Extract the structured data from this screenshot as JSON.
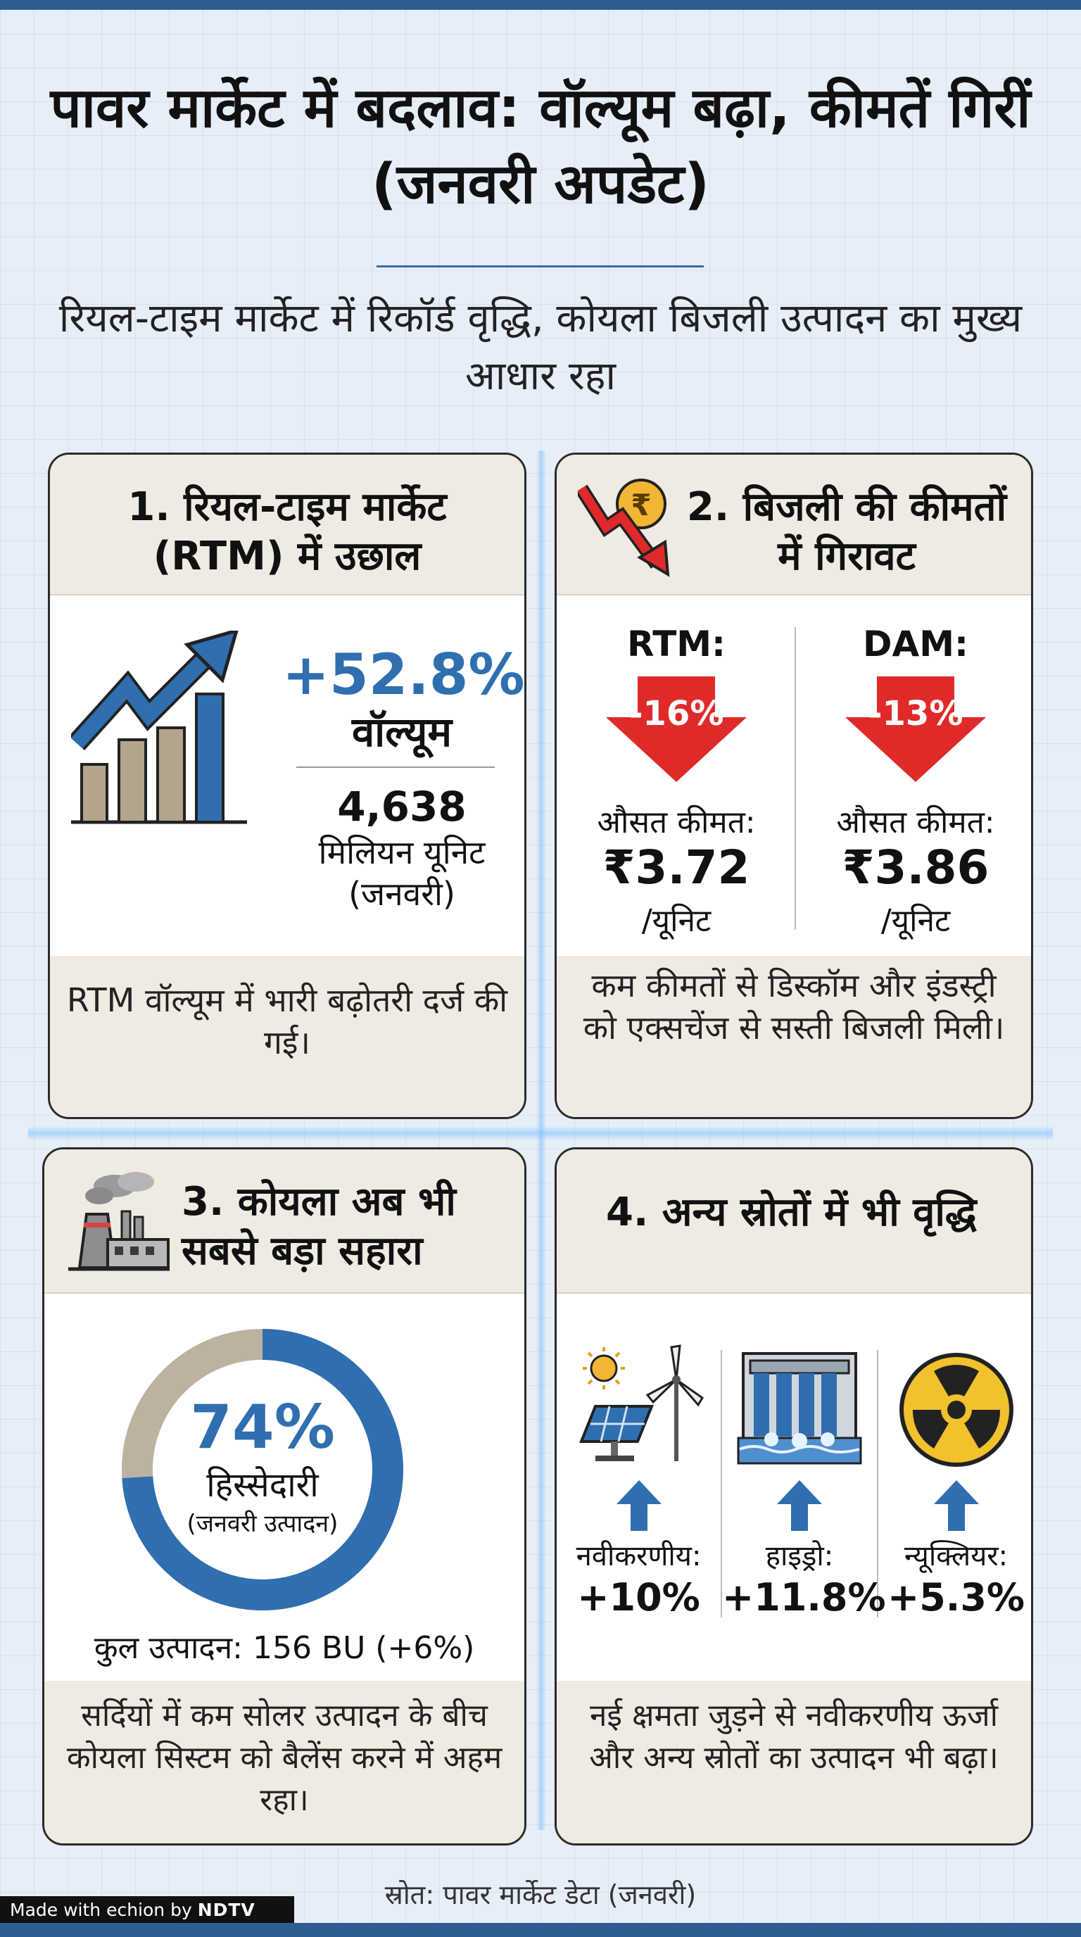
{
  "title": "पावर मार्केट में बदलाव: वॉल्यूम बढ़ा, कीमतें गिरीं (जनवरी अपडेट)",
  "subtitle": "रियल-टाइम मार्केट में रिकॉर्ड वृद्धि, कोयला बिजली उत्पादन का मुख्य आधार रहा",
  "panel1": {
    "heading": "1. रियल-टाइम मार्केट (RTM) में उछाल",
    "growth": "+52.8%",
    "growth_label": "वॉल्यूम",
    "volume": "4,638",
    "unit": "मिलियन यूनिट",
    "period": "(जनवरी)",
    "note": "RTM वॉल्यूम में भारी बढ़ोतरी दर्ज की गई।",
    "icon": "bar-chart-up-arrow-icon"
  },
  "panel2": {
    "heading": "2. बिजली की कीमतों में गिरावट",
    "icon": "falling-rupee-icon",
    "rtm": {
      "label": "RTM:",
      "change": "-16%",
      "price_label": "औसत कीमत:",
      "price": "₹3.72",
      "per_unit": "/यूनिट"
    },
    "dam": {
      "label": "DAM:",
      "change": "-13%",
      "price_label": "औसत कीमत:",
      "price": "₹3.86",
      "per_unit": "/यूनिट"
    },
    "note": "कम कीमतों से डिस्कॉम और इंडस्ट्री को एक्सचेंज से सस्ती बिजली मिली।",
    "arrow_color": "#e02a2a"
  },
  "panel3": {
    "heading": "3. कोयला अब भी सबसे बड़ा सहारा",
    "icon": "power-plant-icon",
    "share_percent": 74,
    "share": "74%",
    "share_label": "हिस्सेदारी",
    "share_sub": "(जनवरी उत्पादन)",
    "total": "कुल उत्पादन: 156 BU (+6%)",
    "note": "सर्दियों में कम सोलर उत्पादन के बीच कोयला सिस्टम को बैलेंस करने में अहम रहा।",
    "colors": {
      "coal": "#2f6fb0",
      "other": "#bdb2a0"
    }
  },
  "panel4": {
    "heading": "4. अन्य स्रोतों में भी वृद्धि",
    "sources": [
      {
        "icon": "solar-wind-icon",
        "label": "नवीकरणीय:",
        "value": "+10%"
      },
      {
        "icon": "hydro-dam-icon",
        "label": "हाइड्रो:",
        "value": "+11.8%"
      },
      {
        "icon": "nuclear-icon",
        "label": "न्यूक्लियर:",
        "value": "+5.3%"
      }
    ],
    "note": "नई क्षमता जुड़ने से नवीकरणीय ऊर्जा और अन्य स्रोतों का उत्पादन भी बढ़ा।"
  },
  "source": "स्रोत: पावर मार्केट डेटा (जनवरी)",
  "footer": {
    "made_with": "Made with ",
    "brand": "echion",
    "by": " by ",
    "partner": "NDTV"
  }
}
